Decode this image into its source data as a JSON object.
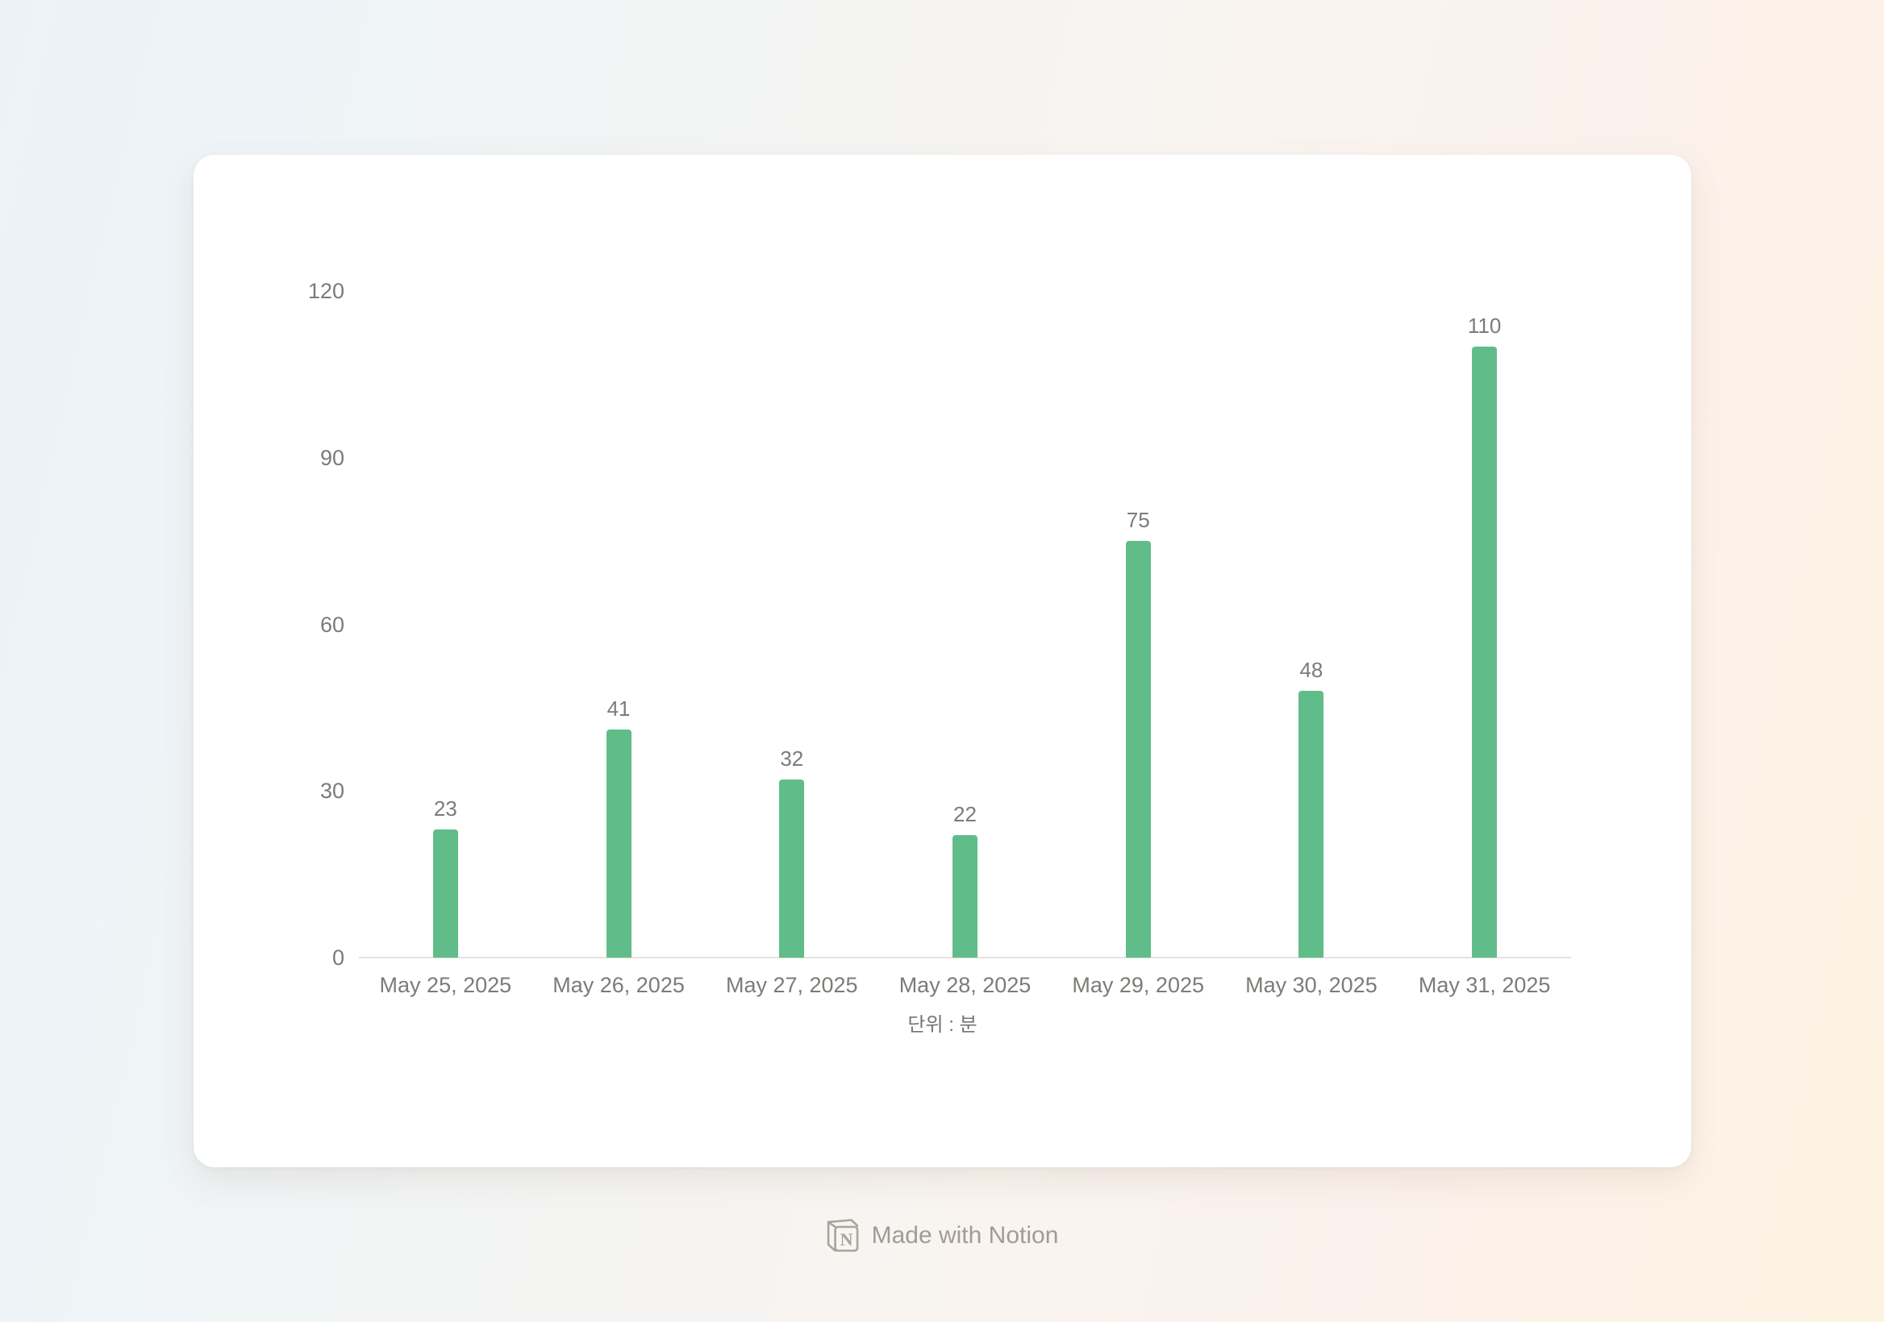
{
  "chart_data": {
    "type": "bar",
    "categories": [
      "May 25, 2025",
      "May 26, 2025",
      "May 27, 2025",
      "May 28, 2025",
      "May 29, 2025",
      "May 30, 2025",
      "May 31, 2025"
    ],
    "values": [
      23,
      41,
      32,
      22,
      75,
      48,
      110
    ],
    "title": "",
    "xlabel": "",
    "ylabel": "",
    "ylim": [
      0,
      120
    ],
    "yticks": [
      0,
      30,
      60,
      90,
      120
    ],
    "grid": "off",
    "legend": "none",
    "unit_caption": "단위 : 분",
    "bar_color": "#60bd89",
    "label_color": "#7c7b77",
    "axis_line_color": "#e5e3e0"
  },
  "footer": {
    "badge_label": "Made with Notion",
    "notion_icon": "notion-cube-icon",
    "badge_text_color": "#a09c94"
  }
}
